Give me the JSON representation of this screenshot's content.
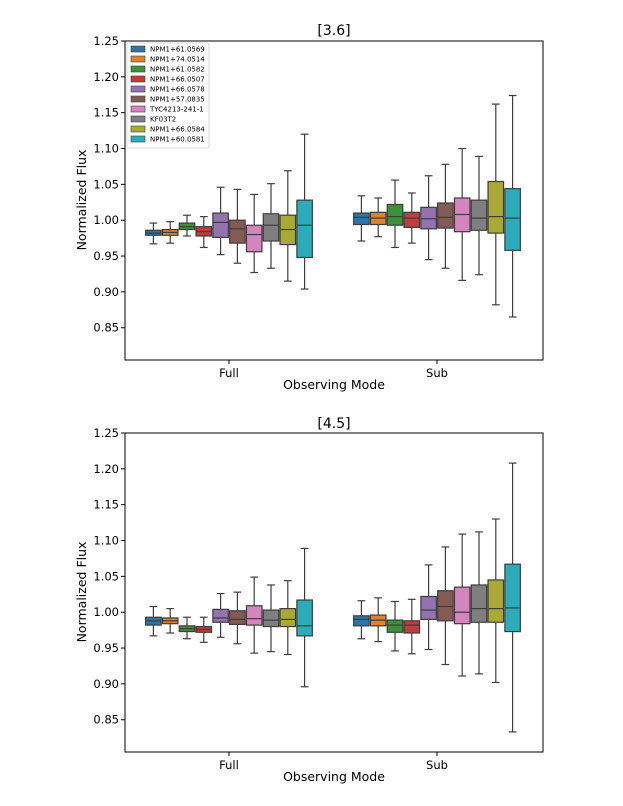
{
  "series_names": [
    "NPM1+61.0569",
    "NPM1+74.0514",
    "NPM1+61.0582",
    "NPM1+66.0507",
    "NPM1+66.0578",
    "NPM1+57.0835",
    "TYC4213-241-1",
    "KF03T2",
    "NPM1+66.0584",
    "NPM1+60.0581"
  ],
  "colors": [
    "#3274a1",
    "#e1812c",
    "#3a923a",
    "#c03d3e",
    "#9372b2",
    "#845b53",
    "#d684bd",
    "#7f7f7f",
    "#a9aa35",
    "#2eabb8"
  ],
  "chart_data": [
    {
      "type": "box",
      "title": "[3.6]",
      "xlabel": "Observing Mode",
      "ylabel": "Normalized Flux",
      "categories": [
        "Full",
        "Sub"
      ],
      "ylim": [
        0.805,
        1.25
      ],
      "yticks": [
        "0.85",
        "0.90",
        "0.95",
        "1.00",
        "1.05",
        "1.10",
        "1.15",
        "1.20",
        "1.25"
      ],
      "legend": "top-left",
      "groups": [
        {
          "category": "Full",
          "boxes": [
            {
              "min": 0.967,
              "q1": 0.979,
              "med": 0.982,
              "q3": 0.986,
              "max": 0.996
            },
            {
              "min": 0.968,
              "q1": 0.979,
              "med": 0.983,
              "q3": 0.987,
              "max": 0.998
            },
            {
              "min": 0.978,
              "q1": 0.987,
              "med": 0.991,
              "q3": 0.996,
              "max": 1.007
            },
            {
              "min": 0.962,
              "q1": 0.978,
              "med": 0.984,
              "q3": 0.991,
              "max": 1.005
            },
            {
              "min": 0.952,
              "q1": 0.976,
              "med": 0.997,
              "q3": 1.01,
              "max": 1.046
            },
            {
              "min": 0.94,
              "q1": 0.968,
              "med": 0.988,
              "q3": 1.0,
              "max": 1.043
            },
            {
              "min": 0.927,
              "q1": 0.956,
              "med": 0.98,
              "q3": 0.993,
              "max": 1.036
            },
            {
              "min": 0.933,
              "q1": 0.971,
              "med": 0.993,
              "q3": 1.009,
              "max": 1.051
            },
            {
              "min": 0.915,
              "q1": 0.966,
              "med": 0.987,
              "q3": 1.007,
              "max": 1.069
            },
            {
              "min": 0.904,
              "q1": 0.948,
              "med": 0.993,
              "q3": 1.028,
              "max": 1.12
            }
          ]
        },
        {
          "category": "Sub",
          "boxes": [
            {
              "min": 0.971,
              "q1": 0.994,
              "med": 1.004,
              "q3": 1.01,
              "max": 1.034
            },
            {
              "min": 0.977,
              "q1": 0.994,
              "med": 1.003,
              "q3": 1.011,
              "max": 1.031
            },
            {
              "min": 0.962,
              "q1": 0.993,
              "med": 1.005,
              "q3": 1.022,
              "max": 1.056
            },
            {
              "min": 0.968,
              "q1": 0.99,
              "med": 1.003,
              "q3": 1.011,
              "max": 1.038
            },
            {
              "min": 0.945,
              "q1": 0.988,
              "med": 1.002,
              "q3": 1.018,
              "max": 1.062
            },
            {
              "min": 0.933,
              "q1": 0.989,
              "med": 1.004,
              "q3": 1.024,
              "max": 1.078
            },
            {
              "min": 0.916,
              "q1": 0.984,
              "med": 1.008,
              "q3": 1.031,
              "max": 1.1
            },
            {
              "min": 0.924,
              "q1": 0.986,
              "med": 1.003,
              "q3": 1.028,
              "max": 1.089
            },
            {
              "min": 0.882,
              "q1": 0.982,
              "med": 1.005,
              "q3": 1.054,
              "max": 1.162
            },
            {
              "min": 0.865,
              "q1": 0.958,
              "med": 1.003,
              "q3": 1.044,
              "max": 1.174
            }
          ]
        }
      ]
    },
    {
      "type": "box",
      "title": "[4.5]",
      "xlabel": "Observing Mode",
      "ylabel": "Normalized Flux",
      "categories": [
        "Full",
        "Sub"
      ],
      "ylim": [
        0.805,
        1.25
      ],
      "yticks": [
        "0.85",
        "0.90",
        "0.95",
        "1.00",
        "1.05",
        "1.10",
        "1.15",
        "1.20",
        "1.25"
      ],
      "legend": "none",
      "groups": [
        {
          "category": "Full",
          "boxes": [
            {
              "min": 0.967,
              "q1": 0.982,
              "med": 0.988,
              "q3": 0.993,
              "max": 1.008
            },
            {
              "min": 0.971,
              "q1": 0.984,
              "med": 0.988,
              "q3": 0.992,
              "max": 1.005
            },
            {
              "min": 0.963,
              "q1": 0.973,
              "med": 0.977,
              "q3": 0.981,
              "max": 0.993
            },
            {
              "min": 0.958,
              "q1": 0.972,
              "med": 0.976,
              "q3": 0.98,
              "max": 0.993
            },
            {
              "min": 0.965,
              "q1": 0.986,
              "med": 0.992,
              "q3": 1.004,
              "max": 1.026
            },
            {
              "min": 0.956,
              "q1": 0.983,
              "med": 0.99,
              "q3": 1.002,
              "max": 1.028
            },
            {
              "min": 0.943,
              "q1": 0.982,
              "med": 0.991,
              "q3": 1.009,
              "max": 1.049
            },
            {
              "min": 0.945,
              "q1": 0.98,
              "med": 0.989,
              "q3": 1.003,
              "max": 1.038
            },
            {
              "min": 0.941,
              "q1": 0.98,
              "med": 0.99,
              "q3": 1.005,
              "max": 1.044
            },
            {
              "min": 0.896,
              "q1": 0.967,
              "med": 0.981,
              "q3": 1.017,
              "max": 1.089
            }
          ]
        },
        {
          "category": "Sub",
          "boxes": [
            {
              "min": 0.963,
              "q1": 0.981,
              "med": 0.99,
              "q3": 0.995,
              "max": 1.016
            },
            {
              "min": 0.959,
              "q1": 0.981,
              "med": 0.989,
              "q3": 0.996,
              "max": 1.02
            },
            {
              "min": 0.946,
              "q1": 0.972,
              "med": 0.982,
              "q3": 0.989,
              "max": 1.015
            },
            {
              "min": 0.942,
              "q1": 0.971,
              "med": 0.982,
              "q3": 0.988,
              "max": 1.018
            },
            {
              "min": 0.948,
              "q1": 0.99,
              "med": 1.003,
              "q3": 1.022,
              "max": 1.066
            },
            {
              "min": 0.927,
              "q1": 0.988,
              "med": 1.008,
              "q3": 1.03,
              "max": 1.091
            },
            {
              "min": 0.911,
              "q1": 0.984,
              "med": 1.0,
              "q3": 1.035,
              "max": 1.109
            },
            {
              "min": 0.914,
              "q1": 0.986,
              "med": 1.005,
              "q3": 1.038,
              "max": 1.112
            },
            {
              "min": 0.902,
              "q1": 0.986,
              "med": 1.005,
              "q3": 1.045,
              "max": 1.13
            },
            {
              "min": 0.833,
              "q1": 0.973,
              "med": 1.006,
              "q3": 1.067,
              "max": 1.208
            }
          ]
        }
      ]
    }
  ]
}
